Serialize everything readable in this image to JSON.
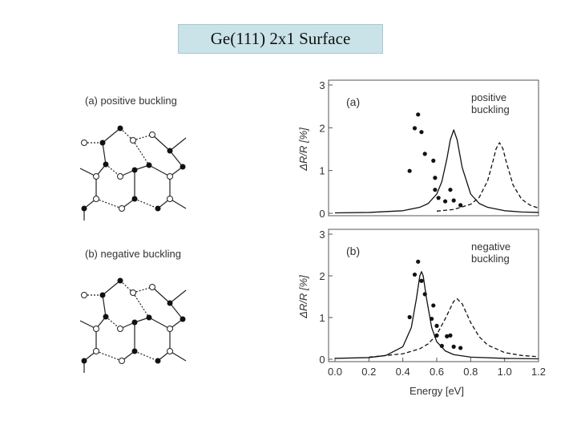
{
  "title": "Ge(111) 2x1 Surface",
  "diagrams": [
    {
      "label": "(a) positive buckling"
    },
    {
      "label": "(b) negative buckling"
    }
  ],
  "chart_data": [
    {
      "type": "line",
      "panel_label": "(a)",
      "annotation": "positive buckling",
      "ylabel": "ΔR/R [%]",
      "xlim": [
        0,
        1.2
      ],
      "ylim": [
        0,
        3
      ],
      "yticks": [
        0,
        1,
        2,
        3
      ],
      "series": [
        {
          "style": "dots",
          "color": "#111111",
          "x": [
            0.44,
            0.49,
            0.47,
            0.51,
            0.53,
            0.58,
            0.59,
            0.59,
            0.61,
            0.65,
            0.68,
            0.7,
            0.74
          ],
          "values": [
            0.99,
            2.31,
            1.99,
            1.9,
            1.39,
            1.23,
            0.83,
            0.55,
            0.36,
            0.28,
            0.55,
            0.3,
            0.19
          ]
        },
        {
          "style": "solid",
          "color": "#111111",
          "x": [
            0.0,
            0.2,
            0.4,
            0.5,
            0.55,
            0.6,
            0.63,
            0.66,
            0.68,
            0.7,
            0.72,
            0.75,
            0.8,
            0.85,
            0.9,
            1.0,
            1.1,
            1.2
          ],
          "values": [
            0.01,
            0.02,
            0.06,
            0.14,
            0.23,
            0.45,
            0.74,
            1.28,
            1.72,
            1.95,
            1.72,
            1.07,
            0.45,
            0.23,
            0.14,
            0.06,
            0.03,
            0.02
          ]
        },
        {
          "style": "dashed",
          "color": "#111111",
          "x": [
            0.6,
            0.7,
            0.8,
            0.85,
            0.9,
            0.93,
            0.95,
            0.97,
            0.99,
            1.01,
            1.05,
            1.1,
            1.15,
            1.2
          ],
          "values": [
            0.05,
            0.09,
            0.21,
            0.37,
            0.76,
            1.2,
            1.51,
            1.65,
            1.51,
            1.2,
            0.66,
            0.33,
            0.19,
            0.12
          ]
        }
      ]
    },
    {
      "type": "line",
      "panel_label": "(b)",
      "annotation": "negative buckling",
      "ylabel": "ΔR/R [%]",
      "xlabel": "Energy [eV]",
      "xlim": [
        0,
        1.2
      ],
      "ylim": [
        0,
        3
      ],
      "yticks": [
        0,
        1,
        2,
        3
      ],
      "xticks": [
        {
          "value": 0,
          "label": "0.0"
        },
        0.2,
        0.4,
        0.6,
        0.8,
        {
          "value": 1,
          "label": "1.0"
        },
        1.2
      ],
      "series": [
        {
          "style": "dots",
          "color": "#111111",
          "x": [
            0.44,
            0.49,
            0.47,
            0.51,
            0.53,
            0.58,
            0.57,
            0.6,
            0.6,
            0.63,
            0.66,
            0.68,
            0.7,
            0.74
          ],
          "values": [
            1.01,
            2.34,
            2.03,
            1.88,
            1.56,
            1.29,
            0.97,
            0.8,
            0.57,
            0.32,
            0.55,
            0.57,
            0.3,
            0.27
          ]
        },
        {
          "style": "solid",
          "color": "#111111",
          "x": [
            0.0,
            0.2,
            0.3,
            0.4,
            0.45,
            0.48,
            0.5,
            0.51,
            0.52,
            0.54,
            0.57,
            0.6,
            0.65,
            0.7,
            0.8,
            1.0,
            1.2
          ],
          "values": [
            0.02,
            0.04,
            0.09,
            0.3,
            0.76,
            1.45,
            2.0,
            2.1,
            2.0,
            1.45,
            0.76,
            0.42,
            0.2,
            0.11,
            0.05,
            0.02,
            0.01
          ]
        },
        {
          "style": "dashed",
          "color": "#111111",
          "x": [
            0.2,
            0.4,
            0.5,
            0.55,
            0.6,
            0.65,
            0.7,
            0.72,
            0.75,
            0.8,
            0.85,
            0.9,
            1.0,
            1.1,
            1.2
          ],
          "values": [
            0.05,
            0.13,
            0.25,
            0.37,
            0.59,
            0.97,
            1.39,
            1.45,
            1.33,
            0.88,
            0.54,
            0.34,
            0.16,
            0.09,
            0.06
          ]
        }
      ]
    }
  ]
}
